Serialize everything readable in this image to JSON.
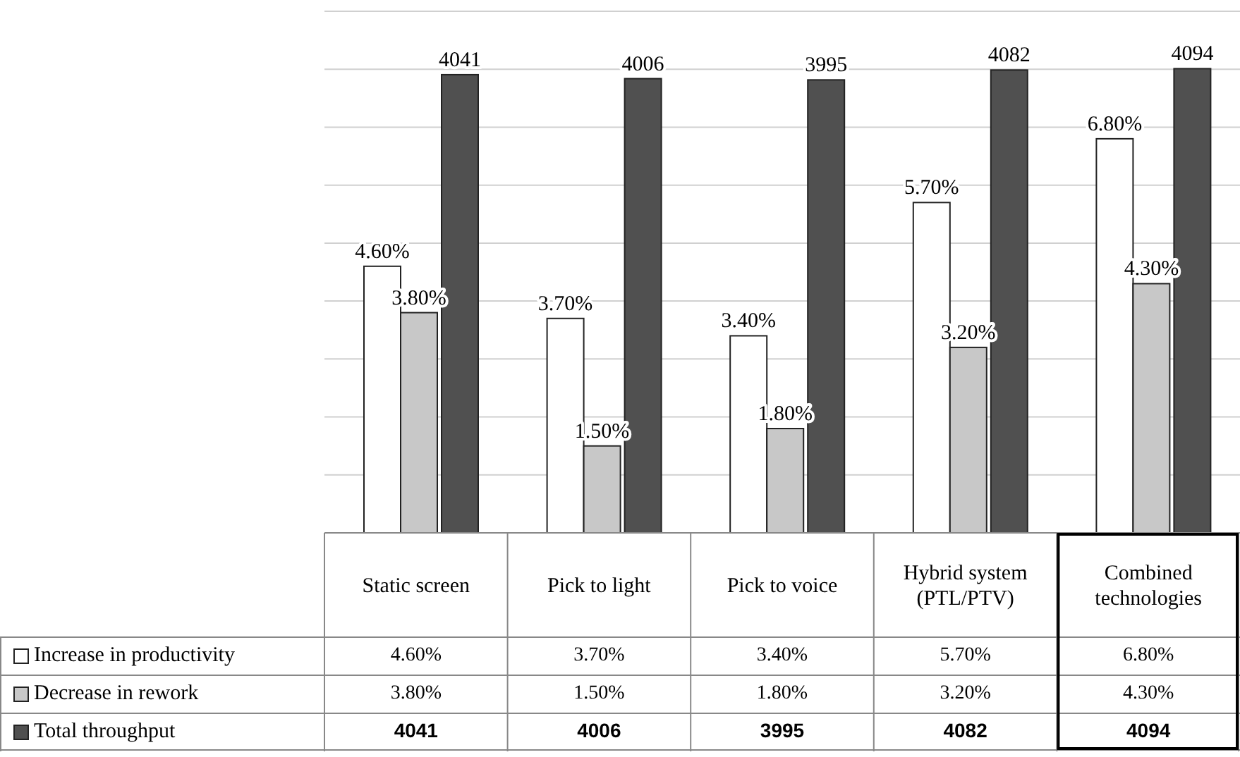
{
  "chart_data": {
    "type": "bar",
    "categories": [
      "Static screen",
      "Pick to light",
      "Pick to voice",
      "Hybrid system (PTL/PTV)",
      "Combined technologies"
    ],
    "series": [
      {
        "name": "Increase in productivity",
        "color": "#ffffff",
        "values": [
          4.6,
          3.7,
          3.4,
          5.7,
          6.8
        ],
        "value_labels": [
          "4.60%",
          "3.70%",
          "3.40%",
          "5.70%",
          "6.80%"
        ]
      },
      {
        "name": "Decrease in rework",
        "color": "#c8c8c8",
        "values": [
          3.8,
          1.5,
          1.8,
          3.2,
          4.3
        ],
        "value_labels": [
          "3.80%",
          "1.50%",
          "1.80%",
          "3.20%",
          "4.30%"
        ]
      },
      {
        "name": "Total throughput",
        "color": "#505050",
        "axis": "y2",
        "values": [
          4041,
          4006,
          3995,
          4082,
          4094
        ],
        "value_labels": [
          "4041",
          "4006",
          "3995",
          "4082",
          "4094"
        ]
      }
    ],
    "ylim": [
      0,
      9
    ],
    "yticks": [
      {
        "value": 0,
        "label": null
      },
      {
        "value": 1,
        "label": null
      },
      {
        "value": 2,
        "label": null
      },
      {
        "value": 3,
        "label": null
      },
      {
        "value": 4,
        "label": null
      },
      {
        "value": 5,
        "label": null
      },
      {
        "value": 6,
        "label": null
      },
      {
        "value": 7,
        "label": null
      },
      {
        "value": 8,
        "label": null
      },
      {
        "value": 9,
        "label": null
      }
    ],
    "y2lim": [
      0,
      4600
    ],
    "grid": "y",
    "legend": "bottom left"
  }
}
